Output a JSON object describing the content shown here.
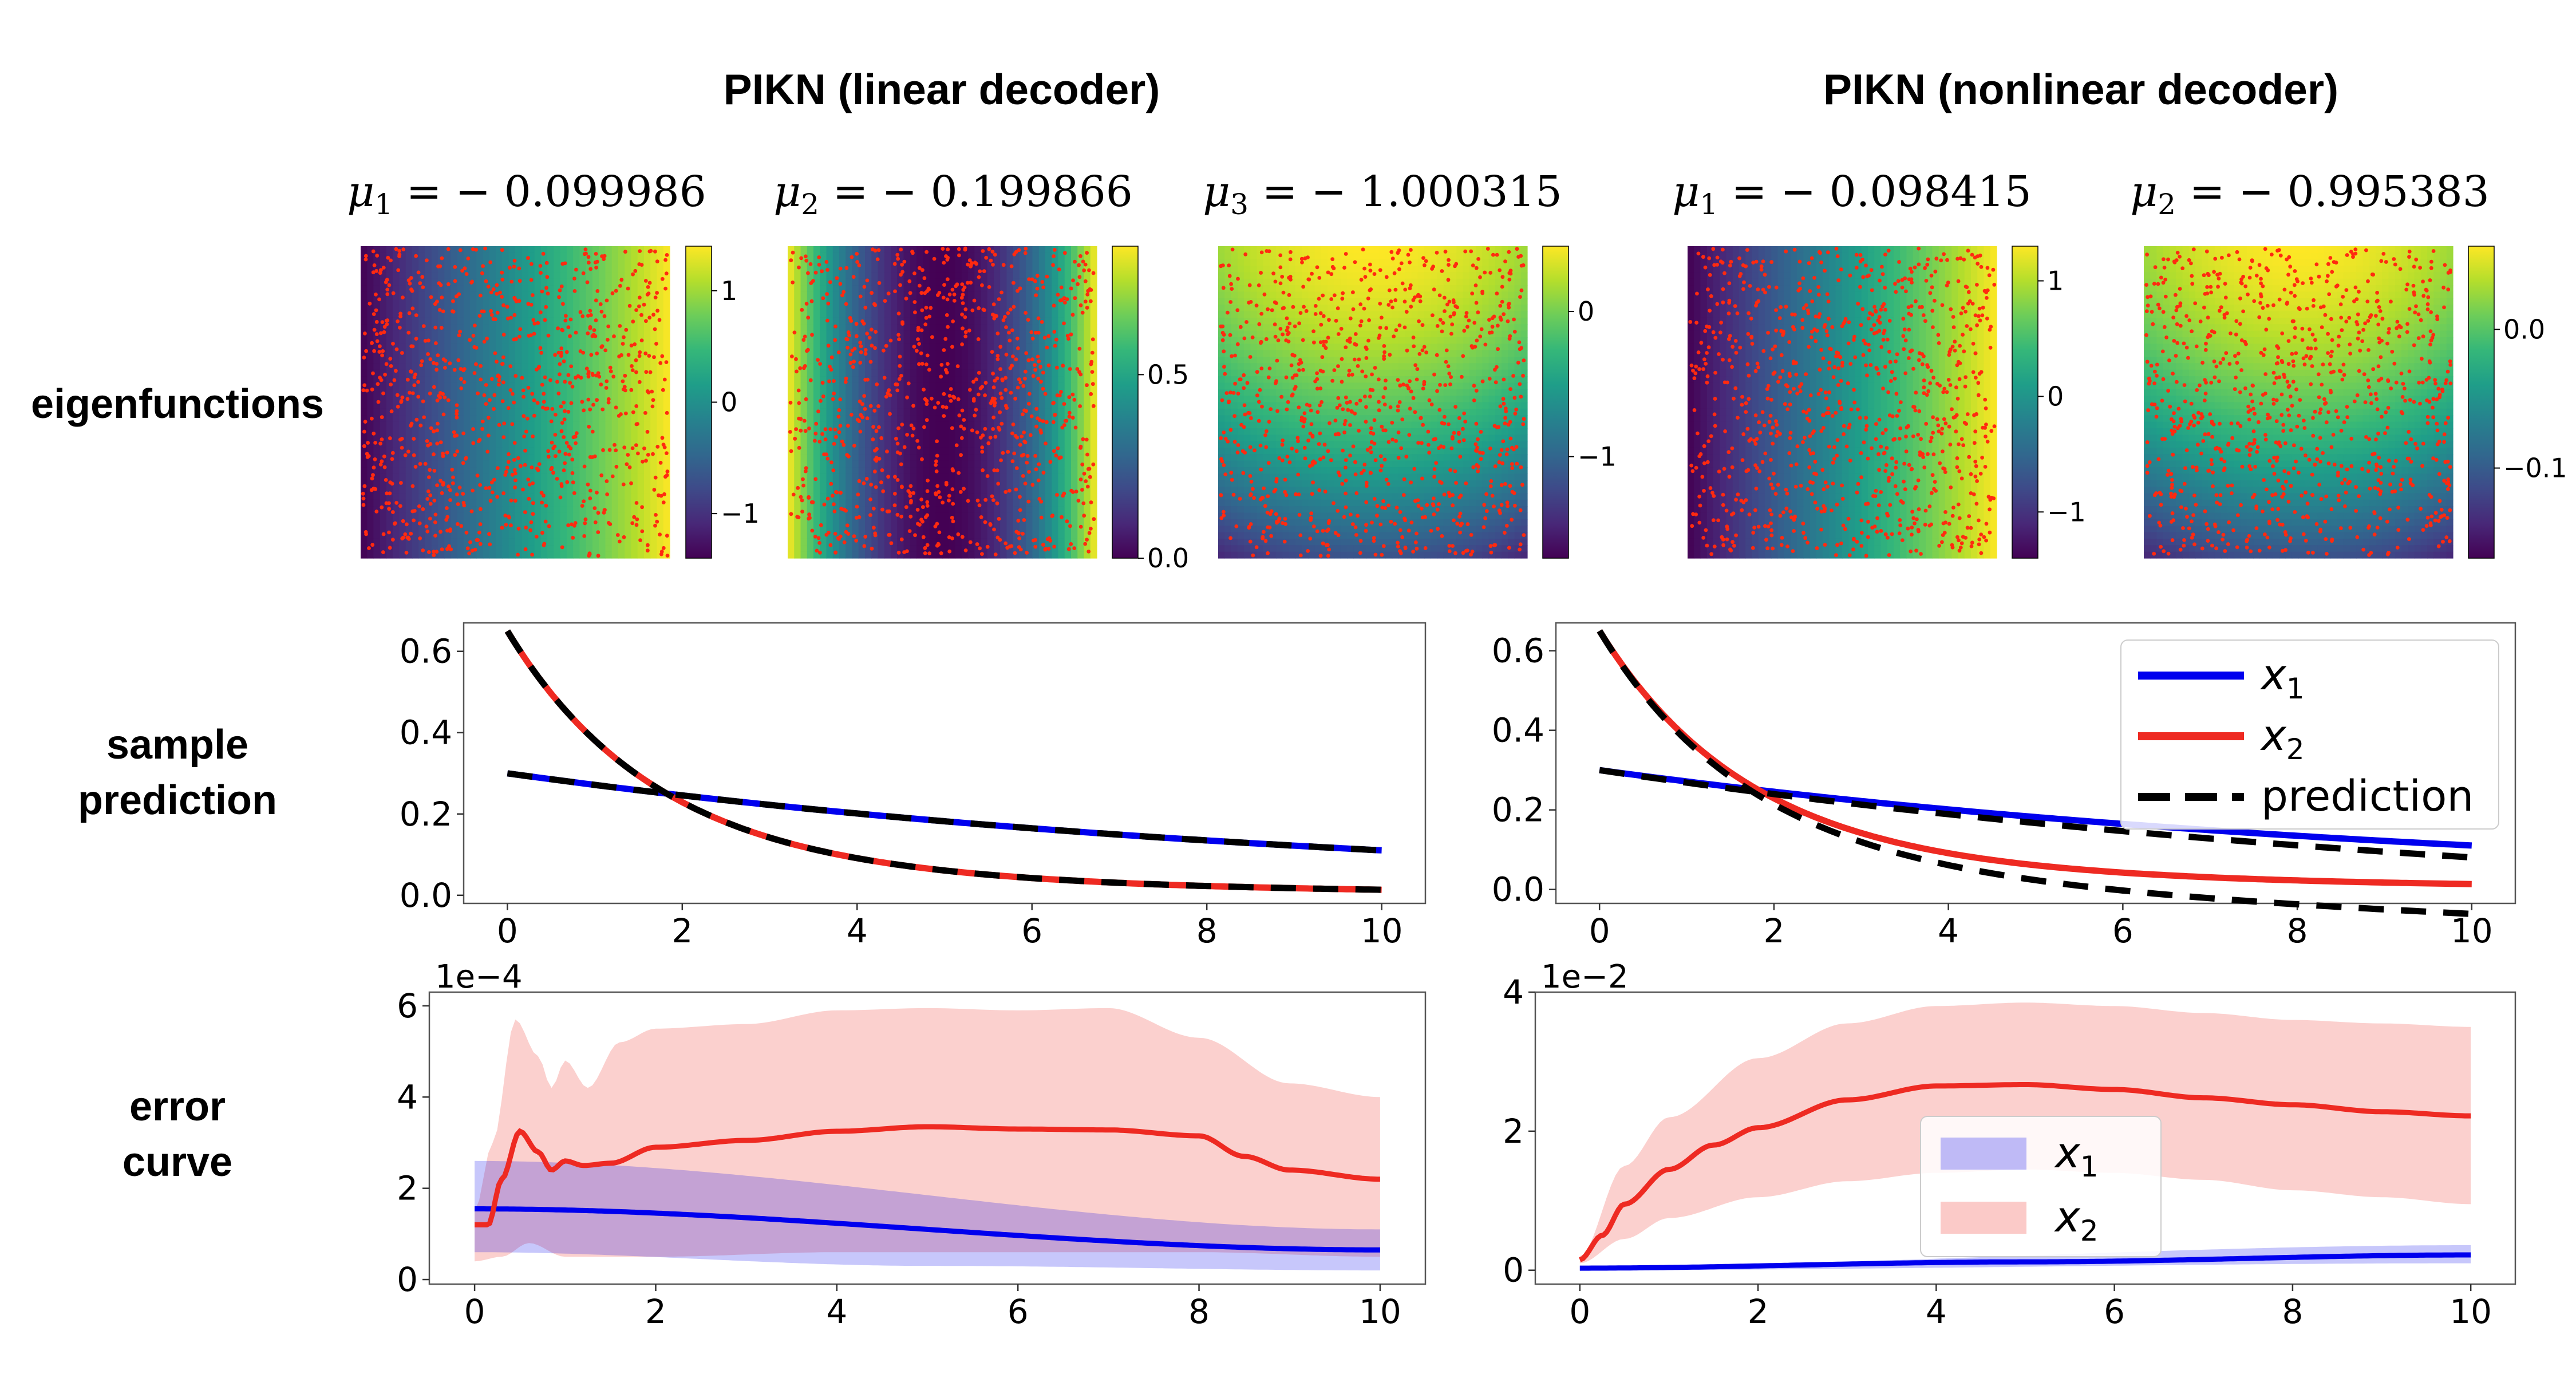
{
  "titles": {
    "left": "PIKN (linear decoder)",
    "right": "PIKN (nonlinear decoder)"
  },
  "row_labels": {
    "eigenfunctions": "eigenfunctions",
    "sample_prediction": [
      "sample",
      "prediction"
    ],
    "error_curve": [
      "error",
      "curve"
    ]
  },
  "colors": {
    "x1": "#0000ee",
    "x2": "#ee2a22",
    "prediction": "#000000",
    "x1_band": "#b8b8f8",
    "x2_band": "#f6c2c2",
    "points": "#ff2a10"
  },
  "chart_data": [
    {
      "type": "heatmap",
      "panel": "eig-linear-1",
      "title_var": "μ",
      "title_sub": "1",
      "title_value": "− 0.099986",
      "pattern": "x-linear",
      "range": [
        -1.4,
        1.4
      ],
      "colorbar_ticks": [
        {
          "v": 1,
          "label": "1"
        },
        {
          "v": 0,
          "label": "0"
        },
        {
          "v": -1,
          "label": "−1"
        }
      ]
    },
    {
      "type": "heatmap",
      "panel": "eig-linear-2",
      "title_var": "μ",
      "title_sub": "2",
      "title_value": "− 0.199866",
      "pattern": "x-quadratic",
      "range": [
        0,
        0.85
      ],
      "colorbar_ticks": [
        {
          "v": 0.5,
          "label": "0.5"
        },
        {
          "v": 0.0,
          "label": "0.0"
        }
      ]
    },
    {
      "type": "heatmap",
      "panel": "eig-linear-3",
      "title_var": "μ",
      "title_sub": "3",
      "title_value": "− 1.000315",
      "pattern": "y-bowl",
      "range": [
        -1.7,
        0.45
      ],
      "colorbar_ticks": [
        {
          "v": 0,
          "label": "0"
        },
        {
          "v": -1,
          "label": "−1"
        }
      ]
    },
    {
      "type": "heatmap",
      "panel": "eig-nonlinear-1",
      "title_var": "μ",
      "title_sub": "1",
      "title_value": "− 0.098415",
      "pattern": "x-linear",
      "range": [
        -1.4,
        1.3
      ],
      "colorbar_ticks": [
        {
          "v": 1,
          "label": "1"
        },
        {
          "v": 0,
          "label": "0"
        },
        {
          "v": -1,
          "label": "−1"
        }
      ]
    },
    {
      "type": "heatmap",
      "panel": "eig-nonlinear-2",
      "title_var": "μ",
      "title_sub": "2",
      "title_value": "− 0.995383",
      "pattern": "y-bowl",
      "range": [
        -0.165,
        0.06
      ],
      "colorbar_ticks": [
        {
          "v": 0.0,
          "label": "0.0"
        },
        {
          "v": -0.1,
          "label": "−0.1"
        }
      ]
    },
    {
      "type": "line",
      "panel": "pred-linear",
      "xlim": [
        -0.5,
        10.5
      ],
      "ylim": [
        -0.02,
        0.67
      ],
      "x_ticks": [
        0,
        2,
        4,
        6,
        8,
        10
      ],
      "y_ticks": [
        {
          "v": 0.0,
          "label": "0.0"
        },
        {
          "v": 0.2,
          "label": "0.2"
        },
        {
          "v": 0.4,
          "label": "0.4"
        },
        {
          "v": 0.6,
          "label": "0.6"
        }
      ],
      "series": [
        {
          "name": "x1",
          "role": "truth",
          "x0": 0.3,
          "model": "x1_truth"
        },
        {
          "name": "x2",
          "role": "truth",
          "x0": 0.65,
          "model": "x2_truth"
        },
        {
          "name": "prediction x1",
          "role": "prediction",
          "model": "x1_truth"
        },
        {
          "name": "prediction x2",
          "role": "prediction",
          "model": "x2_truth"
        }
      ]
    },
    {
      "type": "line",
      "panel": "pred-nonlinear",
      "xlim": [
        -0.5,
        10.5
      ],
      "ylim": [
        -0.035,
        0.67
      ],
      "x_ticks": [
        0,
        2,
        4,
        6,
        8,
        10
      ],
      "y_ticks": [
        {
          "v": 0.0,
          "label": "0.0"
        },
        {
          "v": 0.2,
          "label": "0.2"
        },
        {
          "v": 0.4,
          "label": "0.4"
        },
        {
          "v": 0.6,
          "label": "0.6"
        }
      ],
      "legend": {
        "position": "upper-right",
        "entries": [
          {
            "var": "x",
            "sub": "1",
            "style": "x1-line"
          },
          {
            "var": "x",
            "sub": "2",
            "style": "x2-line"
          },
          {
            "label": "prediction",
            "style": "pred-dash"
          }
        ]
      },
      "series": [
        {
          "name": "x1",
          "role": "truth",
          "x0": 0.3,
          "model": "x1_truth"
        },
        {
          "name": "x2",
          "role": "truth",
          "x0": 0.65,
          "model": "x2_truth"
        },
        {
          "name": "prediction x1",
          "role": "prediction",
          "model": "x1_pred_nl"
        },
        {
          "name": "prediction x2",
          "role": "prediction",
          "model": "x2_pred_nl"
        }
      ]
    },
    {
      "type": "area",
      "panel": "err-linear",
      "multiplier": "1e−4",
      "xlim": [
        -0.5,
        10.5
      ],
      "ylim": [
        -0.1,
        6.3
      ],
      "x_ticks": [
        0,
        2,
        4,
        6,
        8,
        10
      ],
      "y_ticks": [
        {
          "v": 0,
          "label": "0"
        },
        {
          "v": 2,
          "label": "2"
        },
        {
          "v": 4,
          "label": "4"
        },
        {
          "v": 6,
          "label": "6"
        }
      ],
      "x1": {
        "mean": [
          [
            0,
            1.55
          ],
          [
            10,
            0.65
          ]
        ],
        "lower": [
          [
            0,
            0.6
          ],
          [
            5,
            0.3
          ],
          [
            10,
            0.2
          ]
        ],
        "upper": [
          [
            0,
            2.6
          ],
          [
            10,
            1.1
          ]
        ]
      },
      "x2": {
        "mean": [
          [
            0,
            1.2
          ],
          [
            0.15,
            1.2
          ],
          [
            0.3,
            2.2
          ],
          [
            0.5,
            3.25
          ],
          [
            0.7,
            2.8
          ],
          [
            0.85,
            2.4
          ],
          [
            1.0,
            2.6
          ],
          [
            1.2,
            2.5
          ],
          [
            1.5,
            2.55
          ],
          [
            2,
            2.9
          ],
          [
            3,
            3.05
          ],
          [
            4,
            3.25
          ],
          [
            5,
            3.35
          ],
          [
            6,
            3.3
          ],
          [
            7,
            3.28
          ],
          [
            8,
            3.15
          ],
          [
            8.5,
            2.7
          ],
          [
            9,
            2.4
          ],
          [
            10,
            2.2
          ]
        ],
        "lower": [
          [
            0,
            0.4
          ],
          [
            0.3,
            0.5
          ],
          [
            0.6,
            0.8
          ],
          [
            1.0,
            0.5
          ],
          [
            2,
            0.5
          ],
          [
            4,
            0.6
          ],
          [
            6,
            0.6
          ],
          [
            8,
            0.6
          ],
          [
            10,
            0.5
          ]
        ],
        "upper": [
          [
            0,
            1.5
          ],
          [
            0.2,
            3.0
          ],
          [
            0.45,
            5.7
          ],
          [
            0.7,
            4.9
          ],
          [
            0.85,
            4.2
          ],
          [
            1.0,
            4.8
          ],
          [
            1.25,
            4.2
          ],
          [
            1.6,
            5.2
          ],
          [
            2,
            5.5
          ],
          [
            3,
            5.6
          ],
          [
            4,
            5.9
          ],
          [
            5,
            5.95
          ],
          [
            6,
            5.9
          ],
          [
            7,
            5.95
          ],
          [
            8,
            5.3
          ],
          [
            9,
            4.3
          ],
          [
            10,
            4.0
          ]
        ]
      }
    },
    {
      "type": "area",
      "panel": "err-nonlinear",
      "multiplier": "1e−2",
      "xlim": [
        -0.5,
        10.5
      ],
      "ylim": [
        -0.2,
        4.0
      ],
      "x_ticks": [
        0,
        2,
        4,
        6,
        8,
        10
      ],
      "y_ticks": [
        {
          "v": 0,
          "label": "0"
        },
        {
          "v": 2,
          "label": "2"
        },
        {
          "v": 4,
          "label": "4"
        }
      ],
      "legend": {
        "position": "lower-center",
        "entries": [
          {
            "var": "x",
            "sub": "1",
            "style": "x1-band"
          },
          {
            "var": "x",
            "sub": "2",
            "style": "x2-band"
          }
        ]
      },
      "x1": {
        "mean": [
          [
            0,
            0.03
          ],
          [
            5,
            0.12
          ],
          [
            10,
            0.22
          ]
        ],
        "lower": [
          [
            0,
            0.0
          ],
          [
            10,
            0.1
          ]
        ],
        "upper": [
          [
            0,
            0.06
          ],
          [
            10,
            0.36
          ]
        ]
      },
      "x2": {
        "mean": [
          [
            0,
            0.15
          ],
          [
            0.25,
            0.5
          ],
          [
            0.5,
            0.95
          ],
          [
            1,
            1.45
          ],
          [
            1.5,
            1.8
          ],
          [
            2,
            2.05
          ],
          [
            3,
            2.45
          ],
          [
            4,
            2.65
          ],
          [
            5,
            2.67
          ],
          [
            6,
            2.6
          ],
          [
            7,
            2.48
          ],
          [
            8,
            2.38
          ],
          [
            9,
            2.28
          ],
          [
            10,
            2.22
          ]
        ],
        "lower": [
          [
            0,
            0.1
          ],
          [
            0.5,
            0.45
          ],
          [
            1,
            0.75
          ],
          [
            2,
            1.05
          ],
          [
            3,
            1.28
          ],
          [
            4,
            1.4
          ],
          [
            5,
            1.45
          ],
          [
            6,
            1.4
          ],
          [
            7,
            1.3
          ],
          [
            8,
            1.15
          ],
          [
            9,
            1.05
          ],
          [
            10,
            0.95
          ]
        ],
        "upper": [
          [
            0,
            0.2
          ],
          [
            0.5,
            1.5
          ],
          [
            1,
            2.2
          ],
          [
            2,
            3.05
          ],
          [
            3,
            3.55
          ],
          [
            4,
            3.8
          ],
          [
            5,
            3.85
          ],
          [
            6,
            3.8
          ],
          [
            7,
            3.7
          ],
          [
            8,
            3.6
          ],
          [
            9,
            3.55
          ],
          [
            10,
            3.5
          ]
        ]
      }
    }
  ]
}
